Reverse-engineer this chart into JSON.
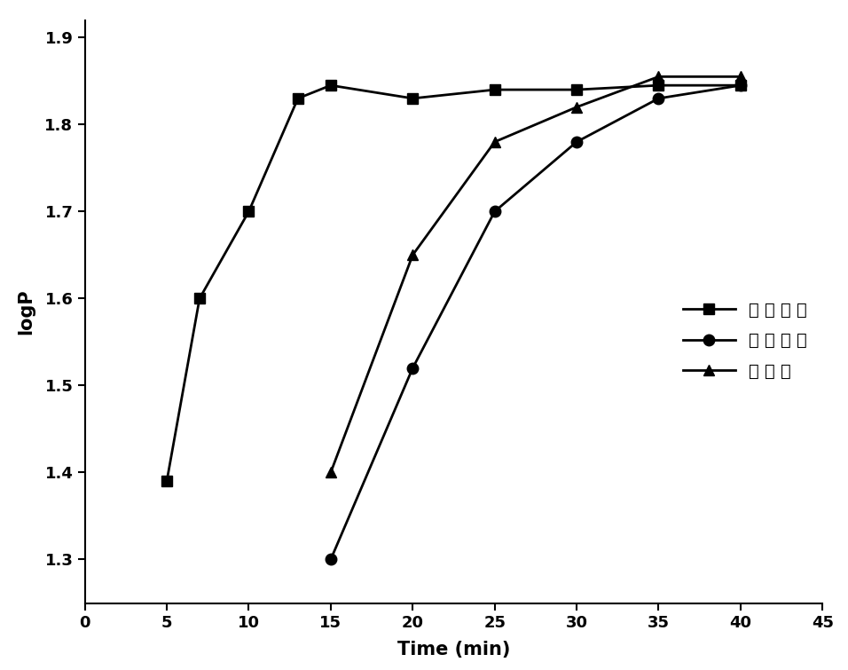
{
  "series1": {
    "label": "超 声 强 化",
    "x": [
      5,
      7,
      10,
      13,
      15,
      20,
      25,
      30,
      35,
      40
    ],
    "y": [
      1.39,
      1.6,
      1.7,
      1.83,
      1.845,
      1.83,
      1.84,
      1.84,
      1.845,
      1.845
    ],
    "marker": "s",
    "color": "#000000",
    "linestyle": "-"
  },
  "series2": {
    "label": "搔 拌 方 式",
    "x": [
      15,
      20,
      25,
      30,
      35,
      40
    ],
    "y": [
      1.3,
      1.52,
      1.7,
      1.78,
      1.83,
      1.845
    ],
    "marker": "o",
    "color": "#000000",
    "linestyle": "-"
  },
  "series3": {
    "label": "摇 瓶 法",
    "x": [
      15,
      20,
      25,
      30,
      35,
      40
    ],
    "y": [
      1.4,
      1.65,
      1.78,
      1.82,
      1.855,
      1.855
    ],
    "marker": "^",
    "color": "#000000",
    "linestyle": "-"
  },
  "xlabel": "Time (min)",
  "ylabel": "logP",
  "xlim": [
    0,
    45
  ],
  "ylim": [
    1.25,
    1.92
  ],
  "xticks": [
    0,
    5,
    10,
    15,
    20,
    25,
    30,
    35,
    40,
    45
  ],
  "yticks": [
    1.3,
    1.4,
    1.5,
    1.6,
    1.7,
    1.8,
    1.9
  ],
  "background_color": "#ffffff",
  "label_fontsize": 15,
  "tick_fontsize": 13,
  "legend_fontsize": 14,
  "marker_size": 9,
  "line_width": 2.0
}
